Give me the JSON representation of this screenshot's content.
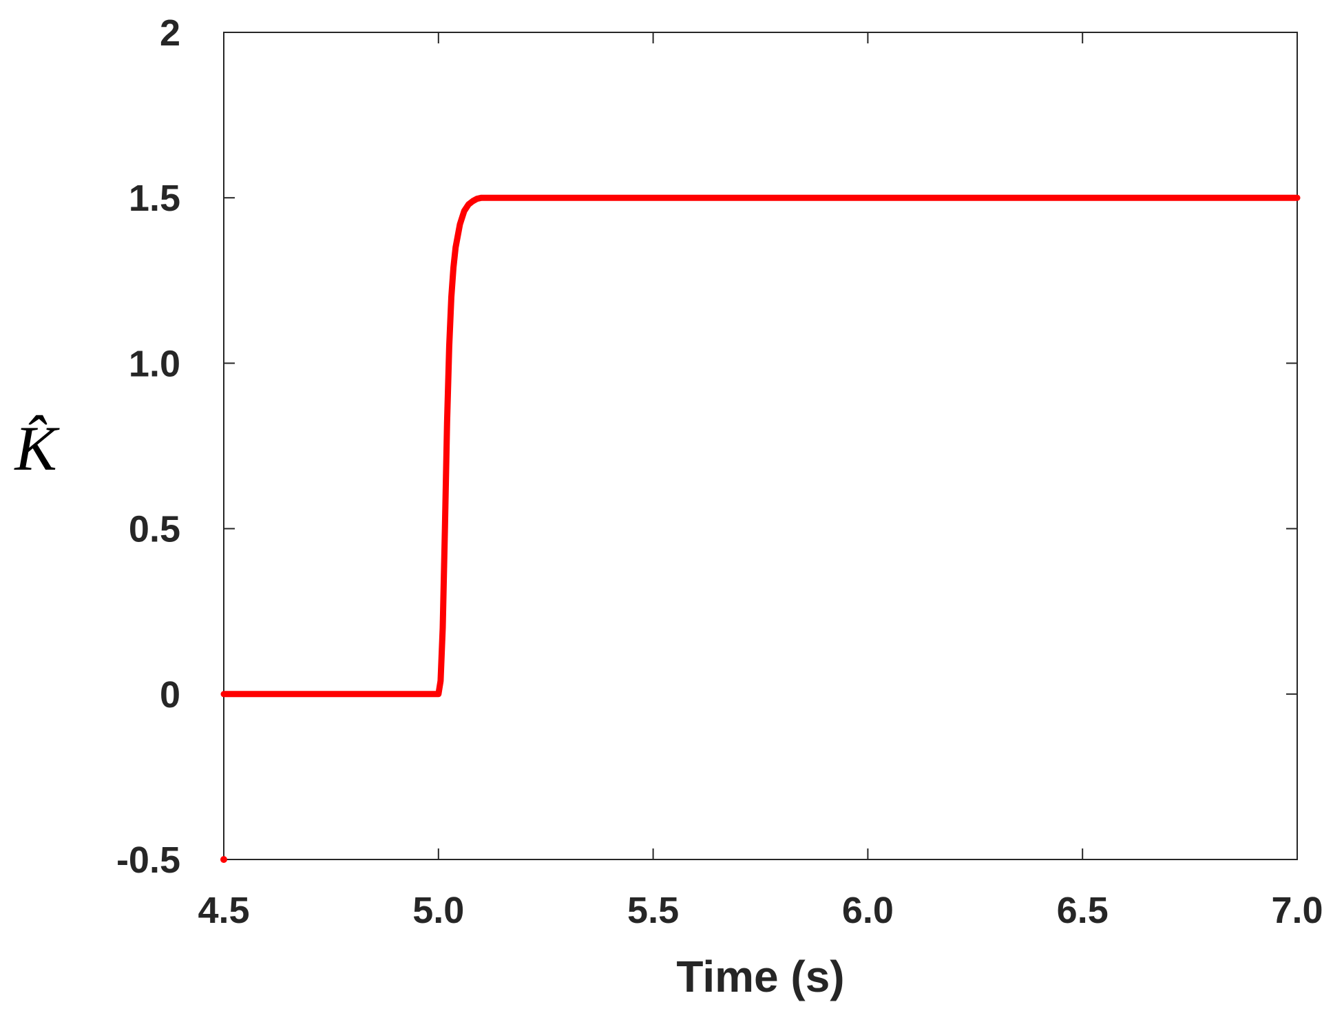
{
  "chart_data": {
    "type": "line",
    "xlabel": "Time (s)",
    "ylabel": "K̂",
    "xlim": [
      4.5,
      7.0
    ],
    "ylim": [
      -0.5,
      2.0
    ],
    "x_ticks": [
      4.5,
      5.0,
      5.5,
      6.0,
      6.5,
      7.0
    ],
    "x_tick_labels": [
      "4.5",
      "5.0",
      "5.5",
      "6.0",
      "6.5",
      "7.0"
    ],
    "y_ticks": [
      -0.5,
      0,
      0.5,
      1.0,
      1.5,
      2.0
    ],
    "y_tick_labels": [
      "-0.5",
      "0",
      "0.5",
      "1.0",
      "1.5",
      "2"
    ],
    "grid": false,
    "series": [
      {
        "color": "#ff0000",
        "x": [
          4.5,
          5.0,
          5.005,
          5.01,
          5.015,
          5.02,
          5.025,
          5.03,
          5.035,
          5.04,
          5.05,
          5.06,
          5.07,
          5.08,
          5.09,
          5.1,
          5.12,
          5.15,
          5.2,
          5.5,
          6.0,
          6.5,
          7.0
        ],
        "y": [
          0,
          0,
          0.04,
          0.2,
          0.5,
          0.82,
          1.05,
          1.2,
          1.29,
          1.35,
          1.42,
          1.46,
          1.48,
          1.49,
          1.497,
          1.5,
          1.5,
          1.5,
          1.5,
          1.5,
          1.5,
          1.5,
          1.5
        ]
      }
    ],
    "marker_points": [
      {
        "x": 4.5,
        "y": -0.5,
        "color": "#ff0000"
      }
    ]
  }
}
